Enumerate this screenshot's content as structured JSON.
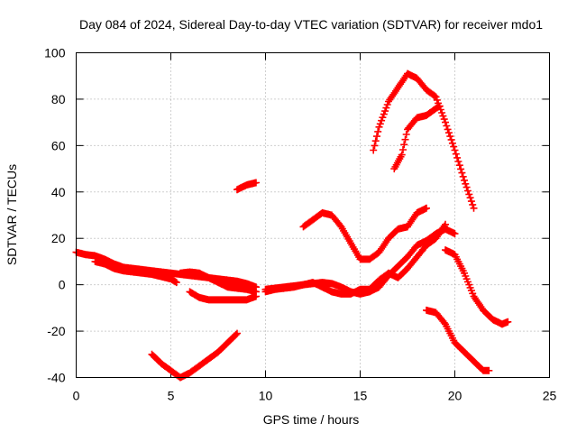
{
  "chart_data": {
    "type": "scatter",
    "title": "Day 084 of 2024, Sidereal Day-to-day VTEC variation (SDTVAR) for receiver mdo1",
    "xlabel": "GPS time / hours",
    "ylabel": "SDTVAR / TECUs",
    "xlim": [
      0,
      25
    ],
    "ylim": [
      -40,
      100
    ],
    "x_ticks": [
      0,
      5,
      10,
      15,
      20,
      25
    ],
    "y_ticks": [
      -40,
      -20,
      0,
      20,
      40,
      60,
      80,
      100
    ],
    "x_tick_labels": [
      "0",
      "5",
      "10",
      "15",
      "20",
      "25"
    ],
    "y_tick_labels": [
      "-40",
      "-20",
      "0",
      "20",
      "40",
      "60",
      "80",
      "100"
    ],
    "grid": true,
    "marker": "plus",
    "color": "#ff0000",
    "series": [
      {
        "name": "trace-1",
        "points": [
          [
            0,
            14
          ],
          [
            0.5,
            13
          ],
          [
            1,
            12.5
          ],
          [
            1.5,
            11
          ],
          [
            2,
            9
          ],
          [
            2.5,
            7.5
          ],
          [
            3,
            7
          ],
          [
            3.5,
            6.5
          ],
          [
            4,
            6
          ],
          [
            4.5,
            5.5
          ],
          [
            5,
            5
          ],
          [
            5.5,
            4.5
          ],
          [
            6,
            4
          ],
          [
            6.5,
            3.5
          ],
          [
            7,
            3
          ],
          [
            7.5,
            2.5
          ],
          [
            8,
            2
          ],
          [
            8.5,
            1.5
          ],
          [
            9,
            0.5
          ],
          [
            9.5,
            -1
          ]
        ]
      },
      {
        "name": "trace-2",
        "points": [
          [
            1,
            10
          ],
          [
            1.5,
            9
          ],
          [
            2,
            7
          ],
          [
            2.5,
            6
          ],
          [
            3,
            5.5
          ],
          [
            3.5,
            5
          ],
          [
            4,
            4.5
          ],
          [
            4.5,
            3.5
          ],
          [
            5,
            2.5
          ],
          [
            5.3,
            1
          ]
        ]
      },
      {
        "name": "trace-3",
        "points": [
          [
            5.5,
            5
          ],
          [
            6,
            5.5
          ],
          [
            6.5,
            5
          ],
          [
            7,
            3
          ],
          [
            7.5,
            1
          ],
          [
            8,
            -1
          ],
          [
            8.5,
            -1.5
          ],
          [
            9,
            -2
          ],
          [
            9.5,
            -3
          ]
        ]
      },
      {
        "name": "trace-4",
        "points": [
          [
            6,
            -3
          ],
          [
            6.5,
            -5.5
          ],
          [
            7,
            -6.5
          ],
          [
            7.5,
            -6.5
          ],
          [
            8,
            -6.5
          ],
          [
            8.5,
            -6.5
          ],
          [
            9,
            -6.5
          ],
          [
            9.5,
            -5
          ]
        ]
      },
      {
        "name": "trace-5",
        "points": [
          [
            4,
            -30
          ],
          [
            4.5,
            -34
          ],
          [
            5,
            -37
          ],
          [
            5.5,
            -40
          ],
          [
            6,
            -38
          ],
          [
            6.5,
            -35
          ],
          [
            7,
            -32
          ],
          [
            7.5,
            -29
          ],
          [
            8,
            -25
          ],
          [
            8.5,
            -21
          ]
        ]
      },
      {
        "name": "trace-6",
        "points": [
          [
            8.5,
            41
          ],
          [
            9,
            43
          ],
          [
            9.5,
            44
          ]
        ]
      },
      {
        "name": "trace-7",
        "points": [
          [
            10,
            -3
          ],
          [
            10.5,
            -2
          ],
          [
            11,
            -1.5
          ],
          [
            11.5,
            -1
          ],
          [
            12,
            0
          ],
          [
            12.5,
            0.5
          ],
          [
            13,
            1
          ],
          [
            13.5,
            0.5
          ],
          [
            14,
            -1
          ],
          [
            14.5,
            -3
          ],
          [
            15,
            -4
          ],
          [
            15.5,
            -3
          ],
          [
            16,
            -1
          ],
          [
            16.5,
            4
          ],
          [
            17,
            8
          ],
          [
            17.5,
            12
          ],
          [
            18,
            17
          ],
          [
            18.5,
            19
          ],
          [
            19,
            22
          ],
          [
            19.5,
            24
          ],
          [
            20,
            22
          ]
        ]
      },
      {
        "name": "trace-8",
        "points": [
          [
            10,
            -2
          ],
          [
            11,
            -1
          ],
          [
            12,
            0
          ],
          [
            12.5,
            1
          ],
          [
            13,
            -1
          ],
          [
            13.5,
            -3
          ],
          [
            14,
            -4
          ],
          [
            14.5,
            -4
          ],
          [
            15,
            -2
          ],
          [
            15.5,
            -2
          ],
          [
            16,
            2
          ],
          [
            16.5,
            5
          ],
          [
            17,
            3
          ],
          [
            17.5,
            7
          ],
          [
            18,
            12
          ],
          [
            18.5,
            17
          ],
          [
            19,
            20
          ],
          [
            19.5,
            26
          ]
        ]
      },
      {
        "name": "trace-9",
        "points": [
          [
            12,
            25
          ],
          [
            12.5,
            28
          ],
          [
            13,
            31
          ],
          [
            13.5,
            30
          ],
          [
            14,
            25
          ],
          [
            14.5,
            18
          ],
          [
            15,
            11
          ],
          [
            15.5,
            11
          ],
          [
            16,
            14
          ],
          [
            16.5,
            20
          ],
          [
            17,
            24
          ],
          [
            17.5,
            25
          ],
          [
            18,
            31
          ],
          [
            18.5,
            33
          ]
        ]
      },
      {
        "name": "trace-10",
        "points": [
          [
            15.7,
            58
          ],
          [
            16,
            68
          ],
          [
            16.5,
            79
          ],
          [
            17,
            85
          ],
          [
            17.5,
            91
          ],
          [
            18,
            89
          ],
          [
            18.5,
            84
          ],
          [
            19,
            81
          ],
          [
            19.5,
            70
          ],
          [
            20,
            58
          ],
          [
            20.5,
            45
          ],
          [
            21,
            33
          ]
        ]
      },
      {
        "name": "trace-11",
        "points": [
          [
            16.8,
            50
          ],
          [
            17.2,
            56
          ],
          [
            17.5,
            67
          ],
          [
            18,
            72
          ],
          [
            18.5,
            73
          ],
          [
            19,
            76
          ],
          [
            19.2,
            77
          ]
        ]
      },
      {
        "name": "trace-12",
        "points": [
          [
            19.5,
            15
          ],
          [
            20,
            13
          ],
          [
            20.5,
            5
          ],
          [
            21,
            -5
          ],
          [
            21.5,
            -11
          ],
          [
            22,
            -15
          ],
          [
            22.5,
            -17
          ],
          [
            22.8,
            -16
          ]
        ]
      },
      {
        "name": "trace-13",
        "points": [
          [
            18.5,
            -11
          ],
          [
            19,
            -12
          ],
          [
            19.5,
            -17
          ],
          [
            20,
            -25
          ],
          [
            20.5,
            -29
          ],
          [
            21,
            -33
          ],
          [
            21.5,
            -37
          ],
          [
            21.8,
            -37
          ]
        ]
      }
    ]
  }
}
